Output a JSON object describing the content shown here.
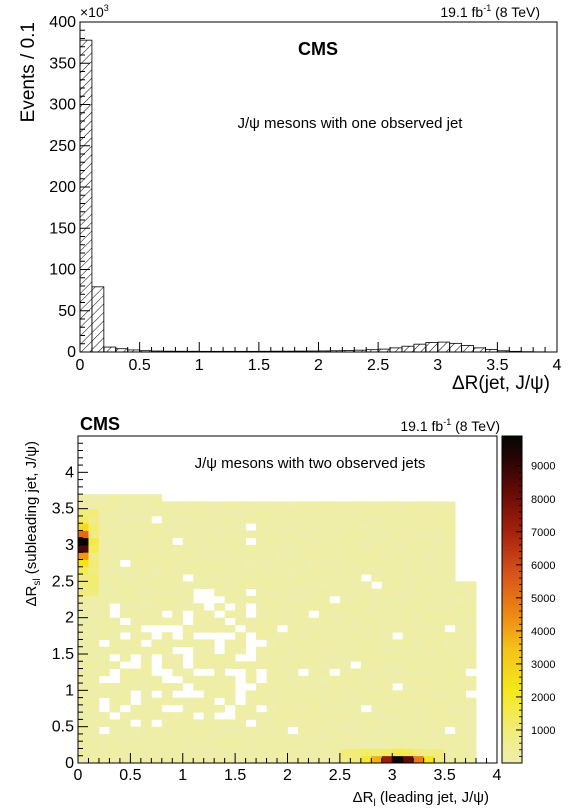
{
  "chart_data": [
    {
      "type": "bar",
      "title": "CMS",
      "lumi_label": "19.1 fb",
      "lumi_sup": "-1",
      "lumi_energy": "(8 TeV)",
      "annotation": "J/ψ mesons with one observed jet",
      "xlabel": "ΔR(jet, J/ψ)",
      "ylabel": "Events / 0.1",
      "y_multiplier": "×10",
      "y_multiplier_exp": "3",
      "xlim": [
        0,
        4
      ],
      "ylim": [
        0,
        400
      ],
      "x_ticks": [
        "0",
        "0.5",
        "1",
        "1.5",
        "2",
        "2.5",
        "3",
        "3.5",
        "4"
      ],
      "y_ticks": [
        "0",
        "50",
        "100",
        "150",
        "200",
        "250",
        "300",
        "350",
        "400"
      ],
      "hatched": true,
      "bin_edges_start": 0,
      "bin_width": 0.1,
      "values": [
        378,
        79,
        6,
        4,
        2.5,
        1.6,
        1.2,
        1.0,
        0.9,
        0.9,
        0.8,
        0.8,
        0.8,
        0.8,
        0.8,
        0.9,
        1.0,
        1.0,
        1.1,
        1.2,
        1.3,
        1.5,
        1.8,
        2.2,
        2.8,
        3.5,
        5.0,
        7.0,
        9.5,
        11.5,
        12.0,
        10.5,
        8.0,
        5.0,
        3.0,
        1.5,
        0.8,
        0.4,
        0.2,
        0.1
      ]
    },
    {
      "type": "heatmap",
      "title": "CMS",
      "lumi_label": "19.1 fb",
      "lumi_sup": "-1",
      "lumi_energy": "(8 TeV)",
      "annotation": "J/ψ mesons with two observed jets",
      "xlabel_main": "ΔR",
      "xlabel_sub": "l",
      "xlabel_rest": " (leading jet, J/ψ)",
      "ylabel_main": "ΔR",
      "ylabel_sub": "sl",
      "ylabel_rest": " (subleading jet, J/ψ)",
      "xlim": [
        0,
        4
      ],
      "ylim": [
        0,
        4.5
      ],
      "x_ticks": [
        "0",
        "0.5",
        "1",
        "1.5",
        "2",
        "2.5",
        "3",
        "3.5",
        "4"
      ],
      "y_ticks": [
        "0",
        "0.5",
        "1",
        "1.5",
        "2",
        "2.5",
        "3",
        "3.5",
        "4"
      ],
      "colorbar_range": [
        0,
        9900
      ],
      "colorbar_ticks": [
        "1000",
        "2000",
        "3000",
        "4000",
        "5000",
        "6000",
        "7000",
        "8000",
        "9000"
      ],
      "colors": {
        "low": "#eeeeb0",
        "yellow": "#f5e81a",
        "orange": "#ef8a14",
        "red": "#a8230e",
        "dark": "#120303"
      },
      "cells": [
        {
          "x": 0.05,
          "y": 3.05,
          "v": 9800
        },
        {
          "x": 0.05,
          "y": 2.95,
          "v": 8600
        },
        {
          "x": 0.05,
          "y": 3.15,
          "v": 5200
        },
        {
          "x": 0.05,
          "y": 2.85,
          "v": 4200
        },
        {
          "x": 0.05,
          "y": 3.25,
          "v": 2600
        },
        {
          "x": 0.05,
          "y": 2.75,
          "v": 2300
        },
        {
          "x": 0.05,
          "y": 2.65,
          "v": 1400
        },
        {
          "x": 0.05,
          "y": 3.35,
          "v": 1300
        },
        {
          "x": 0.05,
          "y": 2.55,
          "v": 900
        },
        {
          "x": 0.15,
          "y": 3.05,
          "v": 1600
        },
        {
          "x": 0.15,
          "y": 2.95,
          "v": 1400
        },
        {
          "x": 0.15,
          "y": 3.15,
          "v": 900
        },
        {
          "x": 0.15,
          "y": 2.85,
          "v": 800
        },
        {
          "x": 3.05,
          "y": 0.05,
          "v": 9700
        },
        {
          "x": 3.15,
          "y": 0.05,
          "v": 8300
        },
        {
          "x": 2.95,
          "y": 0.05,
          "v": 7200
        },
        {
          "x": 3.25,
          "y": 0.05,
          "v": 4800
        },
        {
          "x": 2.85,
          "y": 0.05,
          "v": 3800
        },
        {
          "x": 3.35,
          "y": 0.05,
          "v": 2100
        },
        {
          "x": 2.75,
          "y": 0.05,
          "v": 1800
        },
        {
          "x": 2.65,
          "y": 0.05,
          "v": 1000
        },
        {
          "x": 3.45,
          "y": 0.05,
          "v": 900
        },
        {
          "x": 3.05,
          "y": 0.15,
          "v": 1500
        },
        {
          "x": 3.15,
          "y": 0.15,
          "v": 1400
        },
        {
          "x": 2.95,
          "y": 0.15,
          "v": 1200
        },
        {
          "x": 3.25,
          "y": 0.15,
          "v": 900
        }
      ]
    }
  ]
}
